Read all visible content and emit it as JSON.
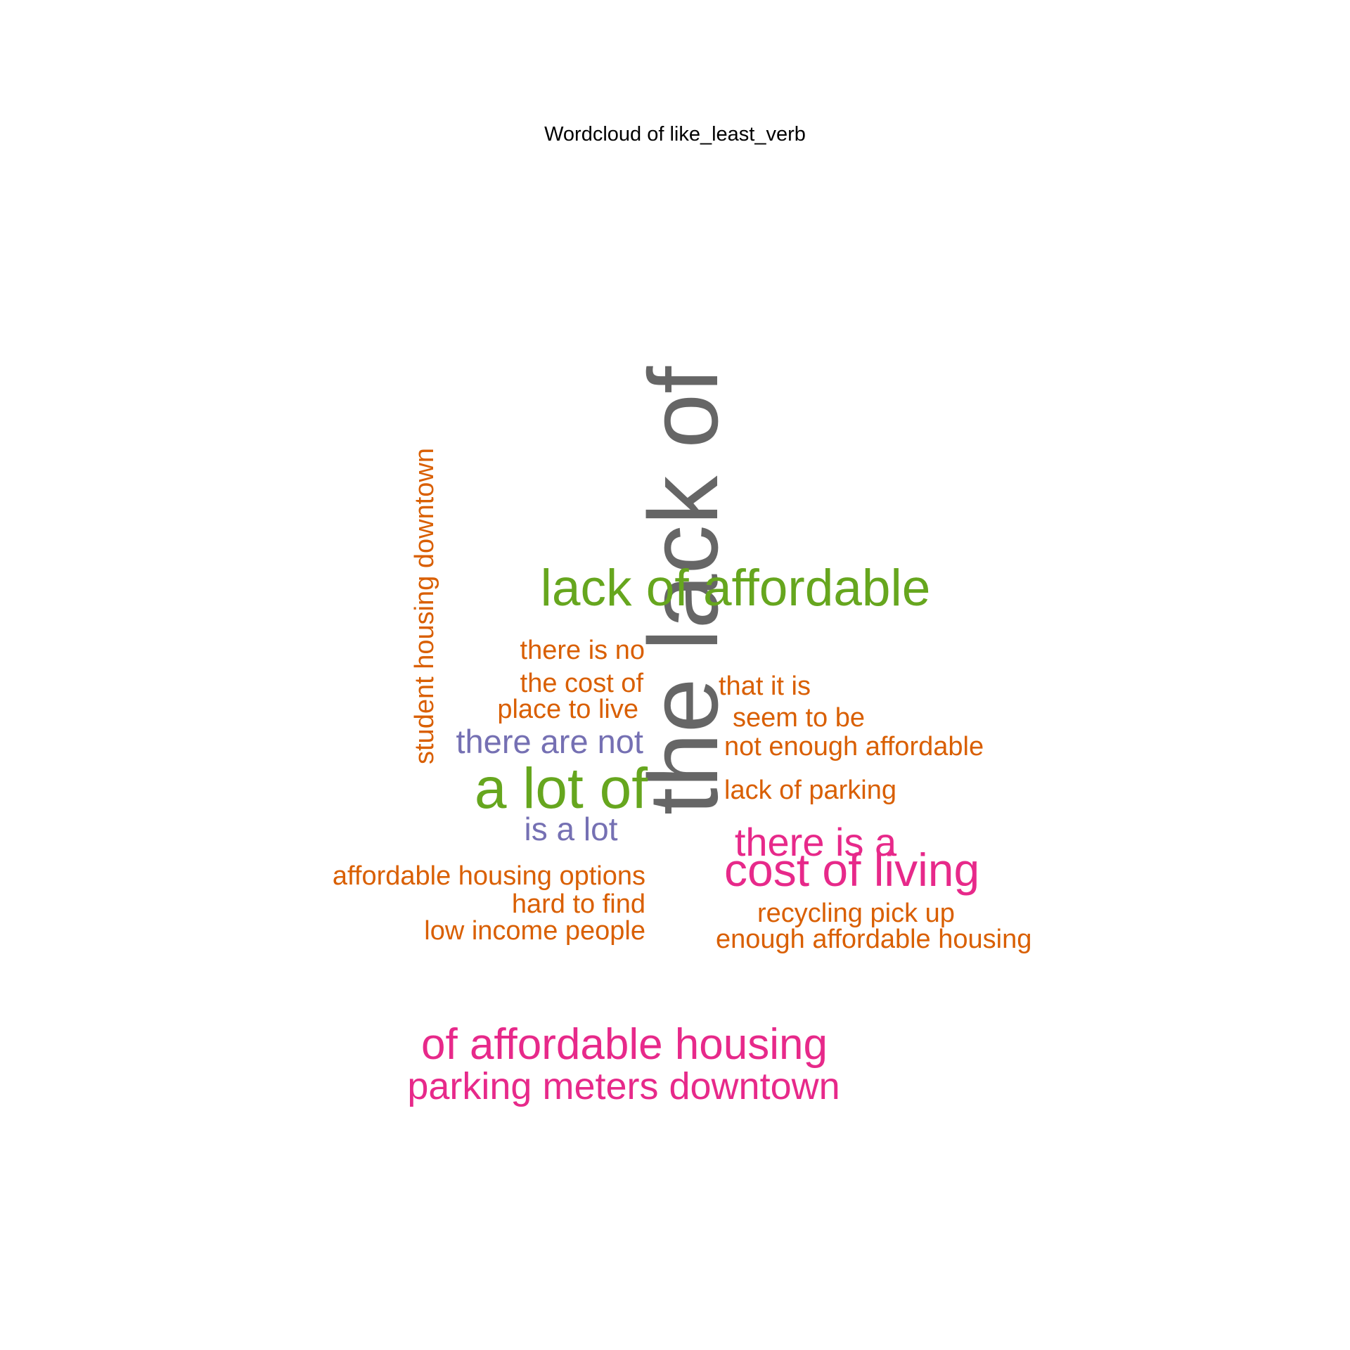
{
  "chart_data": {
    "type": "wordcloud",
    "title": "Wordcloud of like_least_verb",
    "palette": {
      "gray": "#666666",
      "green": "#66a61e",
      "magenta": "#e7298a",
      "purple": "#7570b3",
      "orange": "#d95f02"
    },
    "words": [
      {
        "text": "the lack of",
        "color": "#666666",
        "orientation": "vertical"
      },
      {
        "text": "lack of affordable",
        "color": "#66a61e",
        "orientation": "horizontal"
      },
      {
        "text": "a lot of",
        "color": "#66a61e",
        "orientation": "horizontal"
      },
      {
        "text": "cost of living",
        "color": "#e7298a",
        "orientation": "horizontal"
      },
      {
        "text": "there is a",
        "color": "#e7298a",
        "orientation": "horizontal"
      },
      {
        "text": "of affordable housing",
        "color": "#e7298a",
        "orientation": "horizontal"
      },
      {
        "text": "parking meters downtown",
        "color": "#e7298a",
        "orientation": "horizontal"
      },
      {
        "text": "there are not",
        "color": "#7570b3",
        "orientation": "horizontal"
      },
      {
        "text": "is a lot",
        "color": "#7570b3",
        "orientation": "horizontal"
      },
      {
        "text": "student housing downtown",
        "color": "#d95f02",
        "orientation": "vertical"
      },
      {
        "text": "there is no",
        "color": "#d95f02",
        "orientation": "horizontal"
      },
      {
        "text": "the cost of",
        "color": "#d95f02",
        "orientation": "horizontal"
      },
      {
        "text": "place to live",
        "color": "#d95f02",
        "orientation": "horizontal"
      },
      {
        "text": "that it is",
        "color": "#d95f02",
        "orientation": "horizontal"
      },
      {
        "text": "seem to be",
        "color": "#d95f02",
        "orientation": "horizontal"
      },
      {
        "text": "not enough affordable",
        "color": "#d95f02",
        "orientation": "horizontal"
      },
      {
        "text": "lack of parking",
        "color": "#d95f02",
        "orientation": "horizontal"
      },
      {
        "text": "affordable housing options",
        "color": "#d95f02",
        "orientation": "horizontal"
      },
      {
        "text": "hard to find",
        "color": "#d95f02",
        "orientation": "horizontal"
      },
      {
        "text": "low income people",
        "color": "#d95f02",
        "orientation": "horizontal"
      },
      {
        "text": "recycling pick up",
        "color": "#d95f02",
        "orientation": "horizontal"
      },
      {
        "text": "enough affordable housing",
        "color": "#d95f02",
        "orientation": "horizontal"
      }
    ]
  }
}
